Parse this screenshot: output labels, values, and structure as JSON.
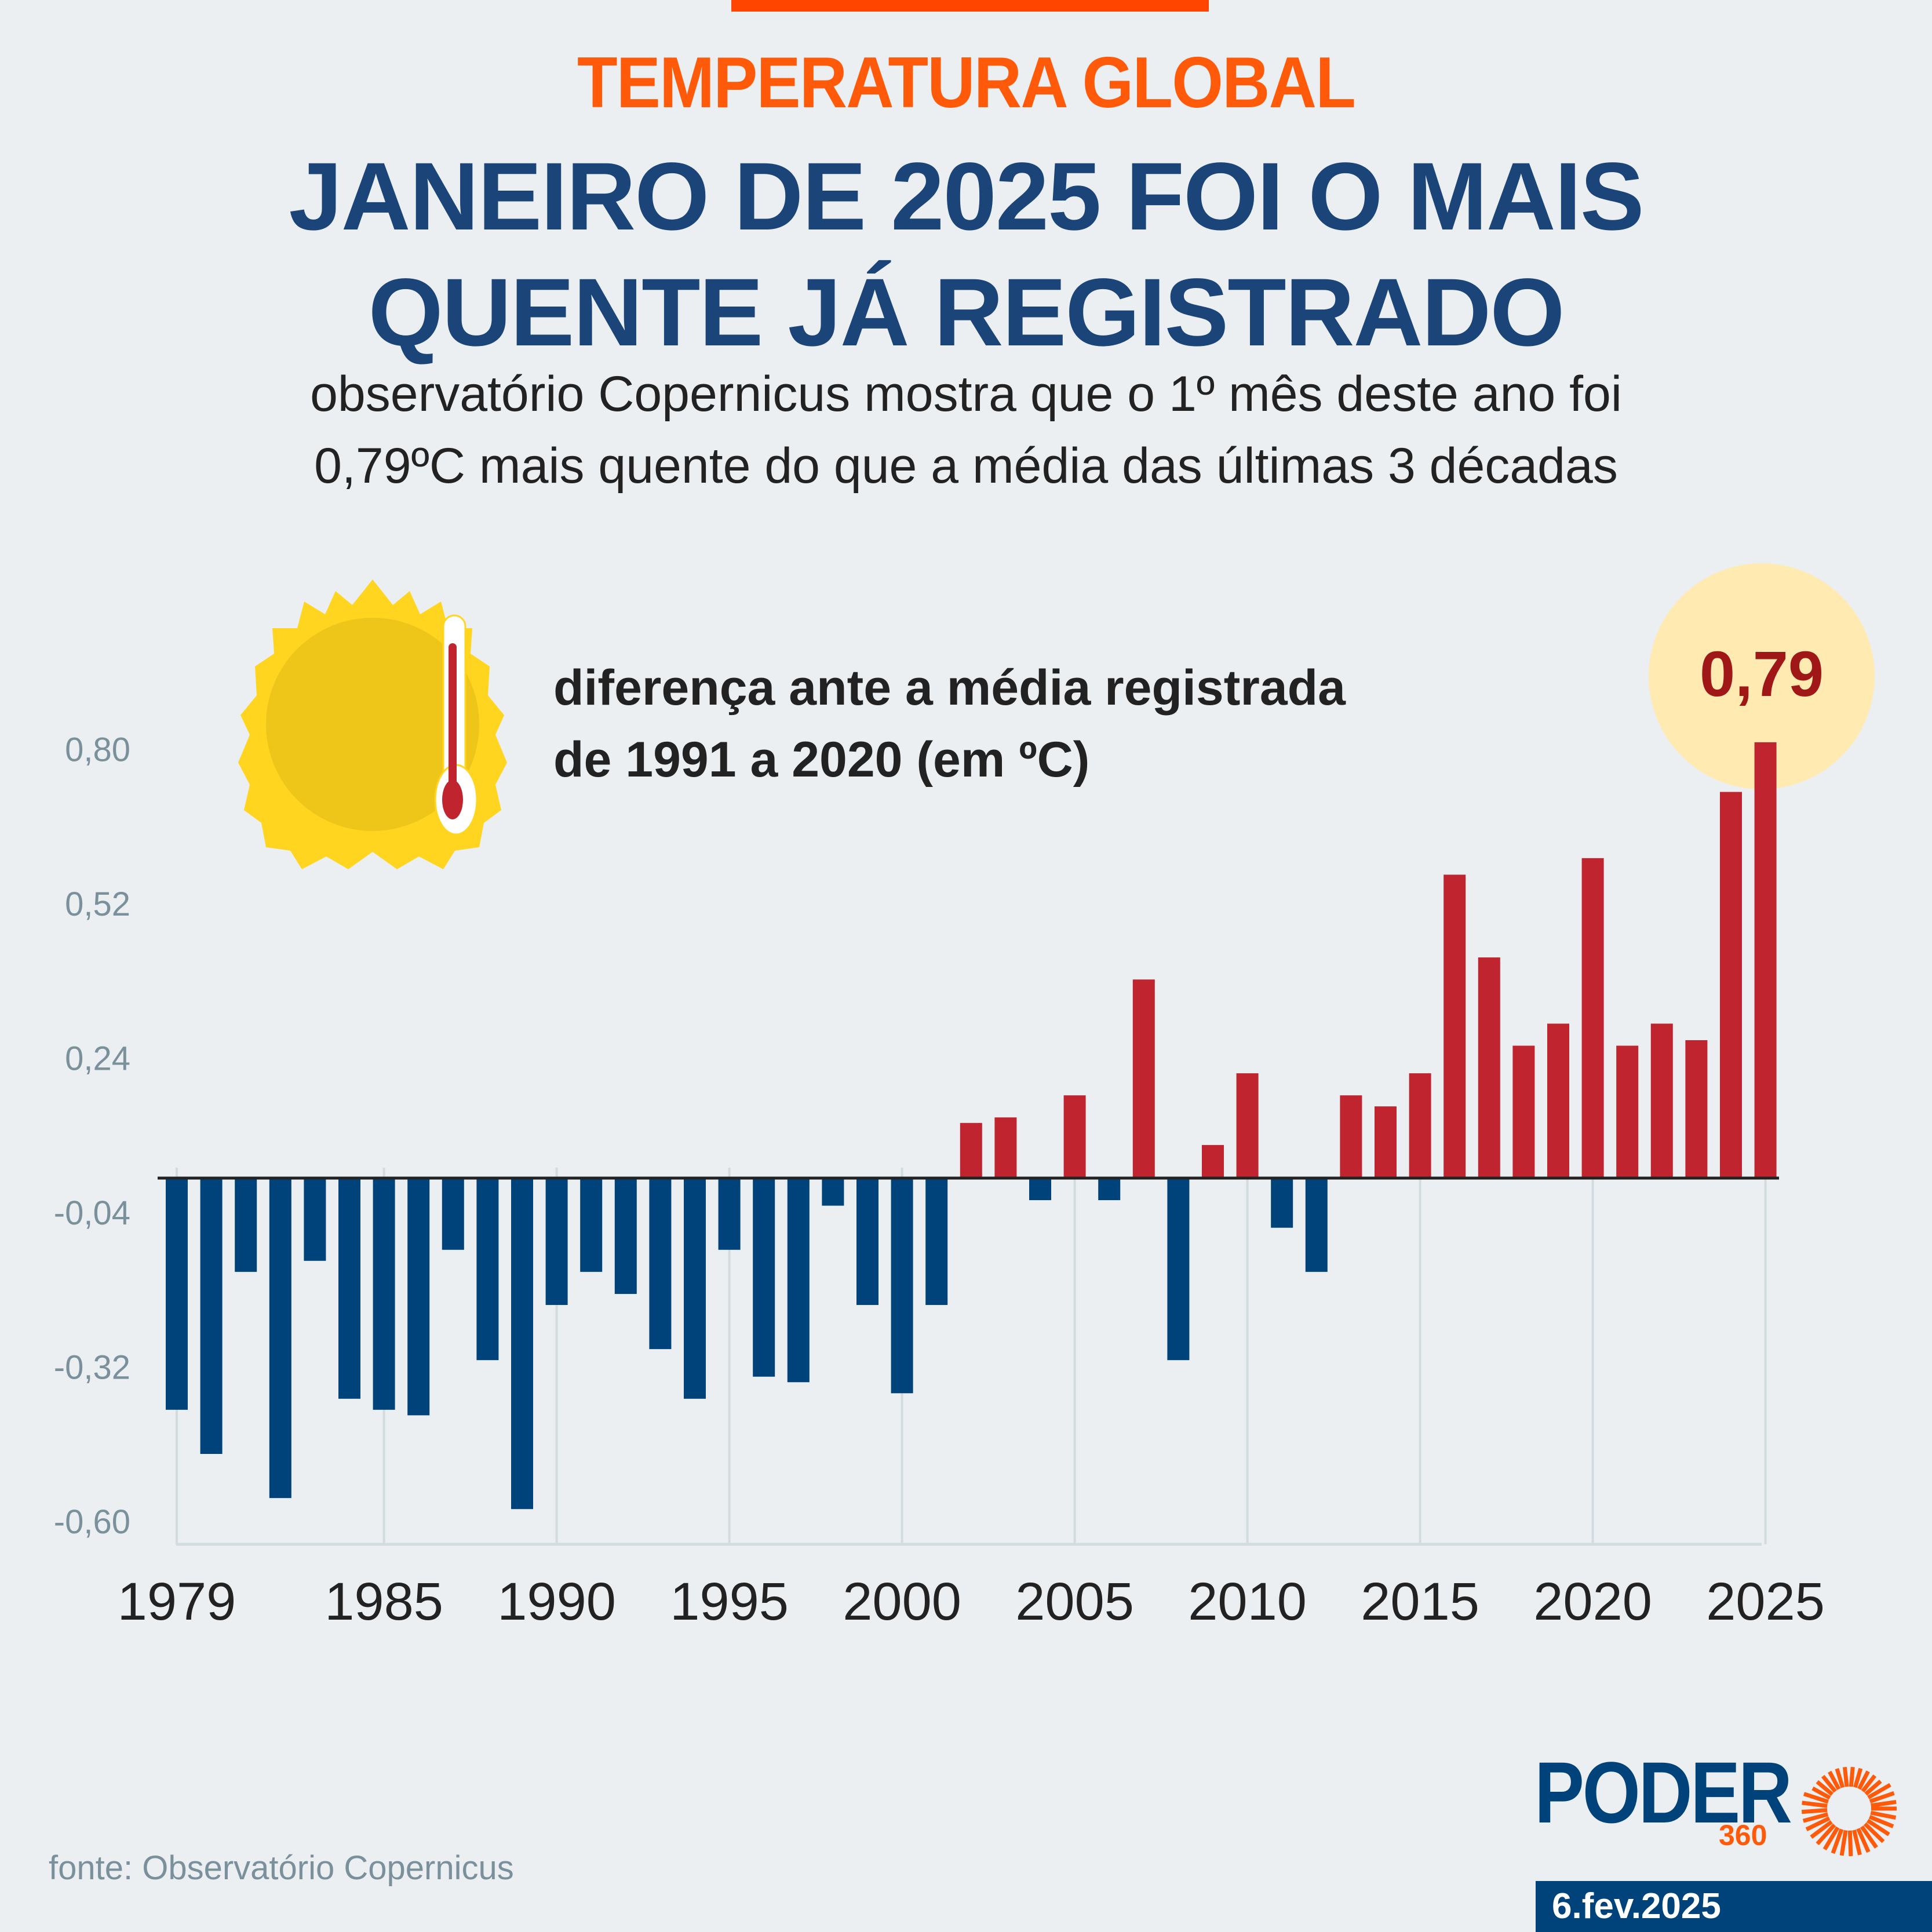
{
  "header": {
    "kicker": "TEMPERATURA GLOBAL",
    "title_line1": "JANEIRO DE 2025 FOI O MAIS",
    "title_line2": "QUENTE JÁ REGISTRADO",
    "subtitle_line1": "observatório Copernicus mostra que o 1º mês deste ano foi",
    "subtitle_line2": "0,79ºC mais quente do que a média das últimas 3 décadas"
  },
  "legend": {
    "line1": "diferença ante a média registrada",
    "line2": "de 1991 a 2020 (em ºC)",
    "icon": "sun-thermometer-icon"
  },
  "callout": {
    "label": "0,79"
  },
  "footer": {
    "source": "fonte: Observatório Copernicus",
    "logo_word": "PODER",
    "logo_number": "360",
    "date": "6.fev.2025"
  },
  "colors": {
    "negative": "#00437a",
    "positive": "#c0242f",
    "accent": "#ff5a0a",
    "title": "#1b4479",
    "background": "#ebeff2",
    "callout": "#ffebb2"
  },
  "chart_data": {
    "type": "bar",
    "title": "diferença ante a média registrada de 1991 a 2020 (em ºC)",
    "xlabel": "",
    "ylabel": "",
    "ylim": [
      -0.6,
      0.8
    ],
    "yticks": [
      0.8,
      0.52,
      0.24,
      -0.04,
      -0.32,
      -0.6
    ],
    "ytick_labels": [
      "0,80",
      "0,52",
      "0,24",
      "-0,04",
      "-0,32",
      "-0,60"
    ],
    "xtick_labels": [
      "1979",
      "1985",
      "1990",
      "1995",
      "2000",
      "2005",
      "2010",
      "2015",
      "2020",
      "2025"
    ],
    "grid": "vertical at labeled years",
    "highlight": {
      "category": "2025",
      "label": "0,79"
    },
    "categories": [
      "1979",
      "1980",
      "1981",
      "1982",
      "1983",
      "1984",
      "1985",
      "1986",
      "1987",
      "1988",
      "1989",
      "1990",
      "1991",
      "1992",
      "1993",
      "1994",
      "1995",
      "1996",
      "1997",
      "1998",
      "1999",
      "2000",
      "2001",
      "2002",
      "2003",
      "2004",
      "2005",
      "2006",
      "2007",
      "2008",
      "2009",
      "2010",
      "2011",
      "2012",
      "2013",
      "2014",
      "2015",
      "2016",
      "2017",
      "2018",
      "2019",
      "2020",
      "2021",
      "2022",
      "2023",
      "2024",
      "2025"
    ],
    "values": [
      -0.42,
      -0.5,
      -0.17,
      -0.58,
      -0.15,
      -0.4,
      -0.42,
      -0.43,
      -0.13,
      -0.33,
      -0.6,
      -0.23,
      -0.17,
      -0.21,
      -0.31,
      -0.4,
      -0.13,
      -0.36,
      -0.37,
      -0.05,
      -0.23,
      -0.39,
      -0.23,
      0.1,
      0.11,
      -0.04,
      0.15,
      -0.04,
      0.36,
      -0.33,
      0.06,
      0.19,
      -0.09,
      -0.17,
      0.15,
      0.13,
      0.19,
      0.55,
      0.4,
      0.24,
      0.28,
      0.58,
      0.24,
      0.28,
      0.25,
      0.7,
      0.79
    ]
  }
}
